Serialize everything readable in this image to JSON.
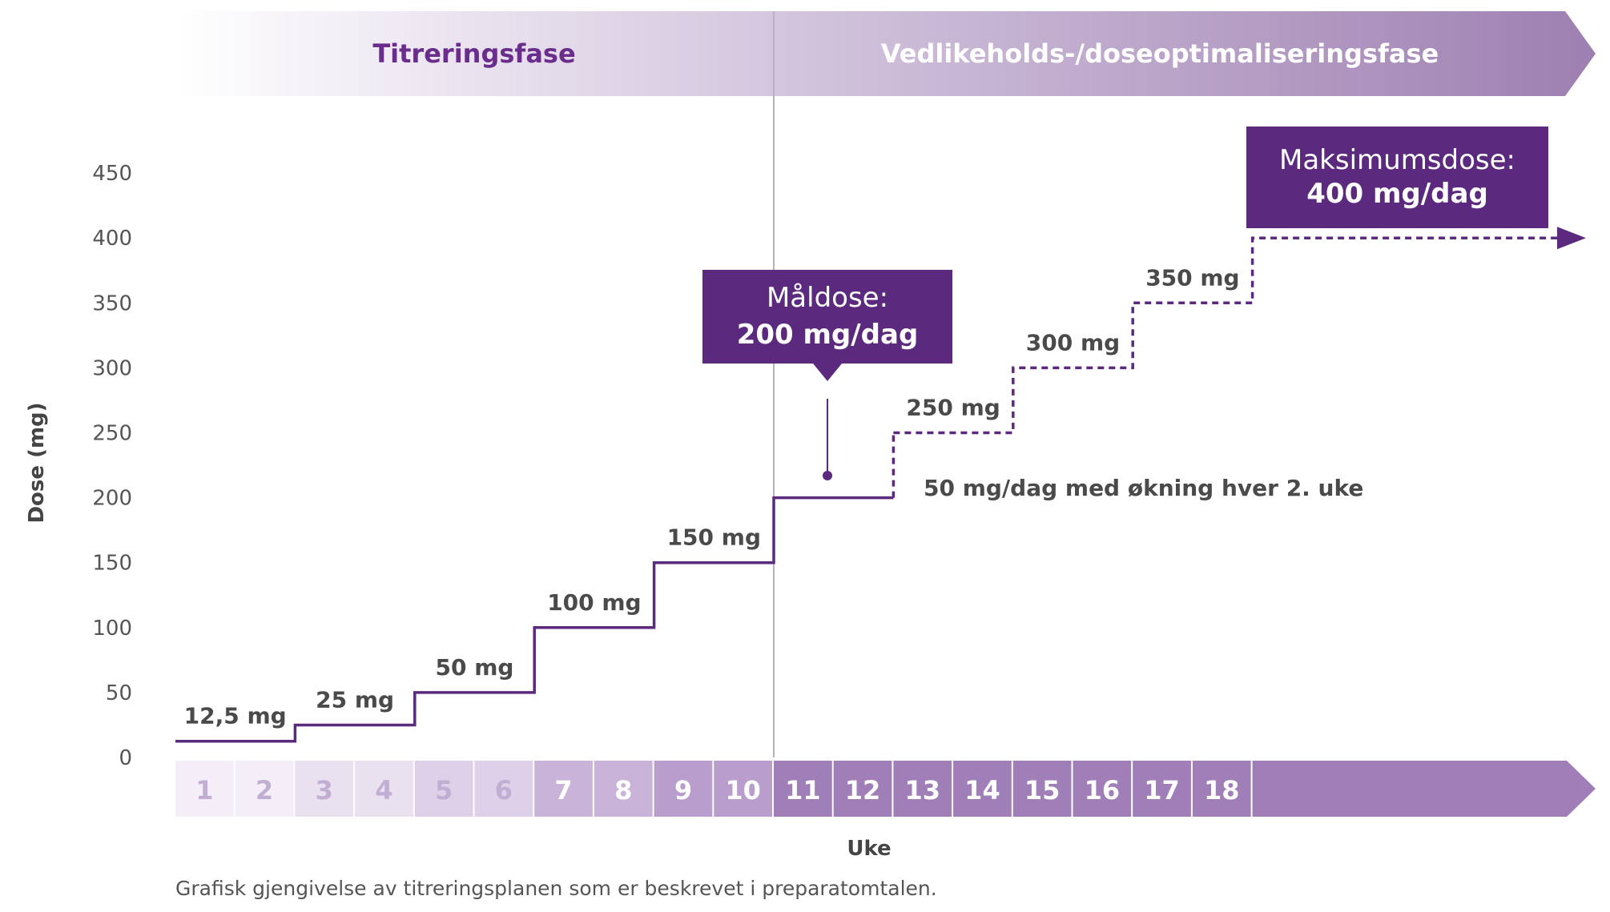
{
  "chart_data": {
    "type": "line",
    "phases": [
      "Titreringsfase",
      "Vedlikeholds-/doseoptimaliseringsfase"
    ],
    "xlabel": "Uke",
    "ylabel": "Dose (mg)",
    "ylim": [
      0,
      450
    ],
    "y_ticks": [
      0,
      50,
      100,
      150,
      200,
      250,
      300,
      350,
      400,
      450
    ],
    "x_ticks": [
      1,
      2,
      3,
      4,
      5,
      6,
      7,
      8,
      9,
      10,
      11,
      12,
      13,
      14,
      15,
      16,
      17,
      18
    ],
    "series": [
      {
        "style": "solid",
        "steps": [
          {
            "from_week": 1,
            "to_week": 2,
            "dose": 12.5,
            "label": "12,5 mg"
          },
          {
            "from_week": 3,
            "to_week": 4,
            "dose": 25,
            "label": "25 mg"
          },
          {
            "from_week": 5,
            "to_week": 6,
            "dose": 50,
            "label": "50 mg"
          },
          {
            "from_week": 7,
            "to_week": 8,
            "dose": 100,
            "label": "100 mg"
          },
          {
            "from_week": 9,
            "to_week": 10,
            "dose": 150,
            "label": "150 mg"
          },
          {
            "from_week": 11,
            "to_week": 12,
            "dose": 200,
            "label": ""
          }
        ]
      },
      {
        "style": "dashed",
        "steps": [
          {
            "from_week": 13,
            "to_week": 14,
            "dose": 250,
            "label": "250 mg"
          },
          {
            "from_week": 15,
            "to_week": 16,
            "dose": 300,
            "label": "300 mg"
          },
          {
            "from_week": 17,
            "to_week": 18,
            "dose": 350,
            "label": "350 mg"
          },
          {
            "from_week": 19,
            "to_week": 24,
            "dose": 400,
            "label": ""
          }
        ]
      }
    ],
    "annotations": {
      "increase_note": "50 mg/dag med økning hver 2. uke",
      "target_dose": {
        "line1": "Måldose:",
        "line2": "200 mg/dag",
        "week": 11,
        "dose": 200
      },
      "max_dose": {
        "line1": "Maksimumsdose:",
        "line2": "400 mg/dag",
        "dose": 400
      }
    },
    "caption": "Grafisk gjengivelse av titreringsplanen som er beskrevet i preparatomtalen."
  },
  "colors": {
    "primary": "#5b2a7e",
    "phase_text_light": "#6a2d8c",
    "axis_text": "#555555",
    "divider": "#b9b0c2"
  }
}
